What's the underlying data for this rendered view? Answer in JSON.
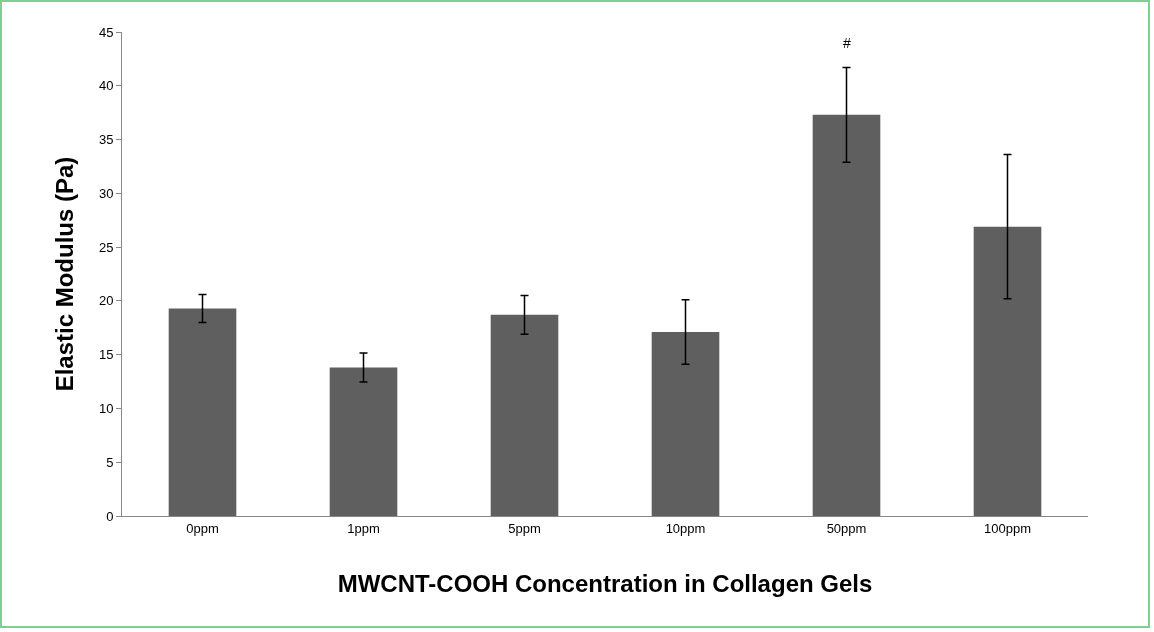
{
  "chart_data": {
    "type": "bar",
    "xlabel": "MWCNT-COOH Concentration in Collagen Gels",
    "ylabel": "Elastic Modulus (Pa)",
    "categories": [
      "0ppm",
      "1ppm",
      "5ppm",
      "10ppm",
      "50ppm",
      "100ppm"
    ],
    "values": [
      19.3,
      13.8,
      18.7,
      17.1,
      37.3,
      26.9
    ],
    "errors": [
      1.3,
      1.35,
      1.8,
      3.0,
      4.4,
      6.7
    ],
    "color": "#5f5f5f",
    "ylim": [
      0,
      45
    ],
    "yticks": [
      0,
      5,
      10,
      15,
      20,
      25,
      30,
      35,
      40,
      45
    ],
    "grid": false,
    "annotations": [
      "#"
    ]
  }
}
